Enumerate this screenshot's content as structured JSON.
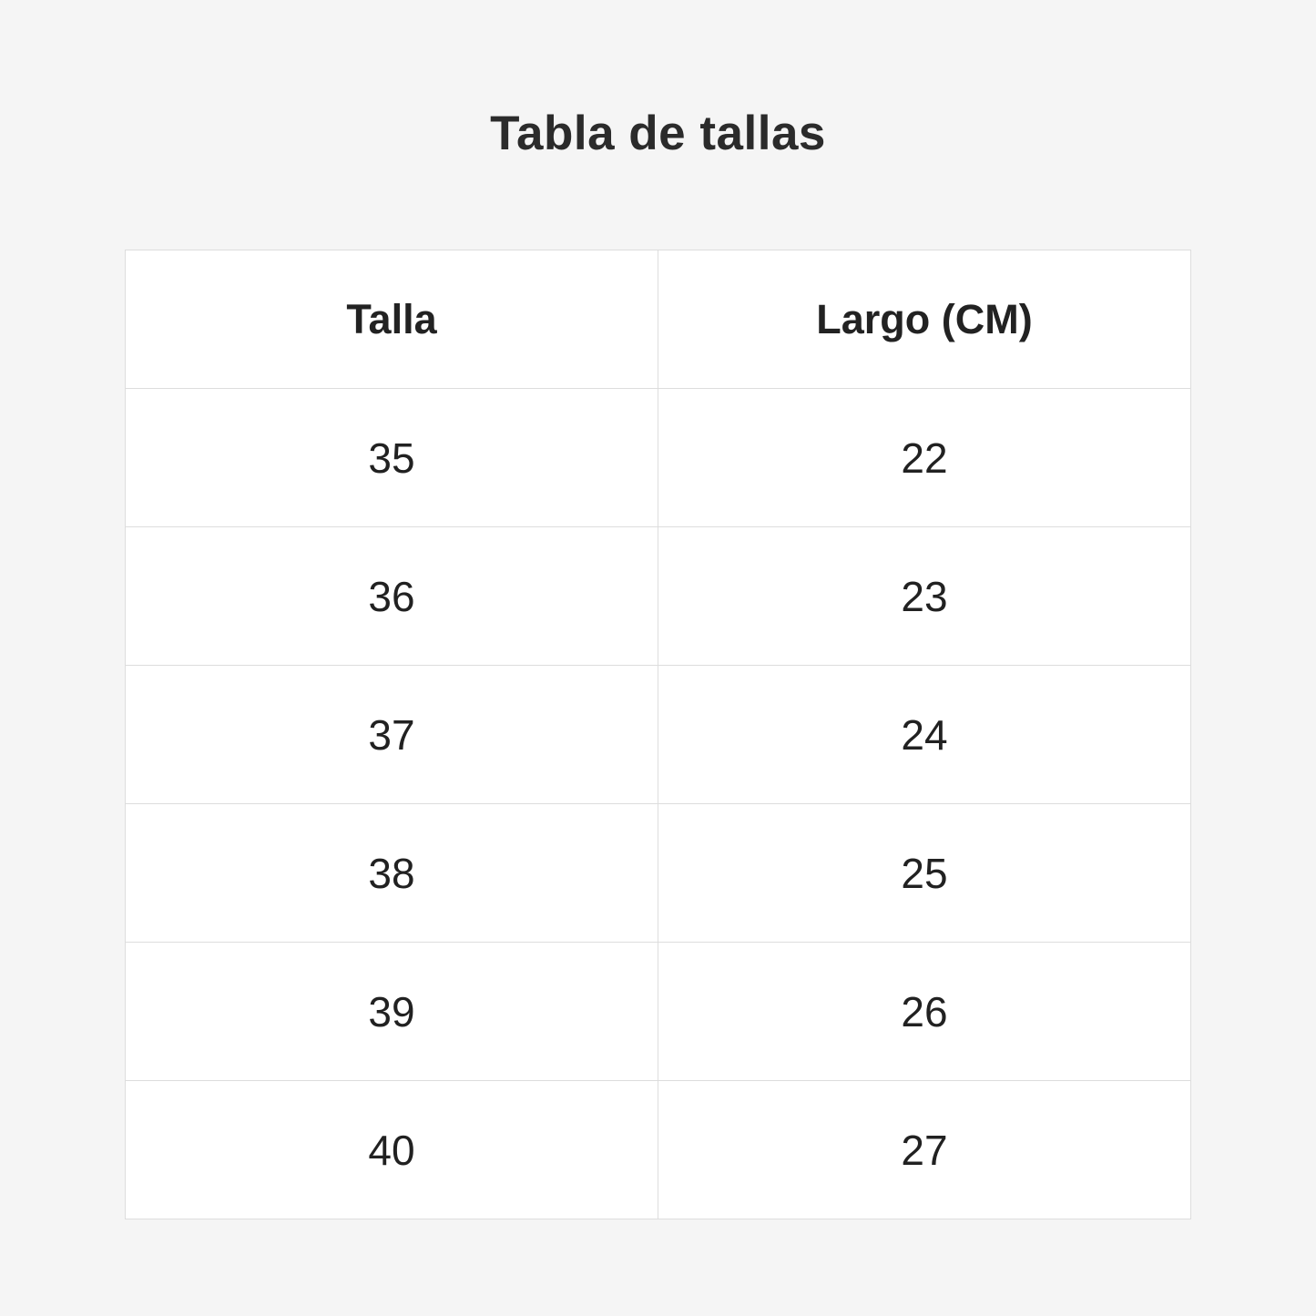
{
  "page": {
    "title": "Tabla de tallas"
  },
  "table": {
    "headers": [
      "Talla",
      "Largo (CM)"
    ],
    "rows": [
      {
        "talla": "35",
        "largo": "22"
      },
      {
        "talla": "36",
        "largo": "23"
      },
      {
        "talla": "37",
        "largo": "24"
      },
      {
        "talla": "38",
        "largo": "25"
      },
      {
        "talla": "39",
        "largo": "26"
      },
      {
        "talla": "40",
        "largo": "27"
      }
    ]
  },
  "chart_data": {
    "type": "table",
    "title": "Tabla de tallas",
    "columns": [
      "Talla",
      "Largo (CM)"
    ],
    "rows": [
      [
        35,
        22
      ],
      [
        36,
        23
      ],
      [
        37,
        24
      ],
      [
        38,
        25
      ],
      [
        39,
        26
      ],
      [
        40,
        27
      ]
    ]
  },
  "colors": {
    "page_background": "#f5f5f5",
    "cell_background": "#ffffff",
    "border": "#dddddd",
    "text": "#212121",
    "title_text": "#2b2b2b"
  }
}
